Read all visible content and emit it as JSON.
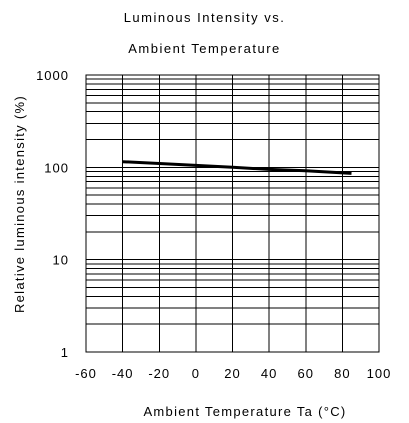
{
  "chart_data": {
    "type": "line",
    "title_line1": "Luminous Intensity vs.",
    "title_line2": "Ambient Temperature",
    "xlabel": "Ambient Temperature Ta (°C)",
    "ylabel": "Relative luminous intensity   (%)",
    "x_scale": "linear",
    "y_scale": "log",
    "xlim": [
      -60,
      100
    ],
    "ylim": [
      1,
      1000
    ],
    "x_ticks": [
      "-60",
      "-40",
      "-20",
      "0",
      "20",
      "40",
      "60",
      "80",
      "100"
    ],
    "y_ticks": [
      "1",
      "10",
      "100",
      "1000"
    ],
    "grid": true,
    "series": [
      {
        "x": [
          -40,
          -20,
          0,
          20,
          40,
          60,
          85
        ],
        "y": [
          115,
          110,
          105,
          100,
          95,
          92,
          86
        ],
        "color": "#000000"
      }
    ]
  }
}
